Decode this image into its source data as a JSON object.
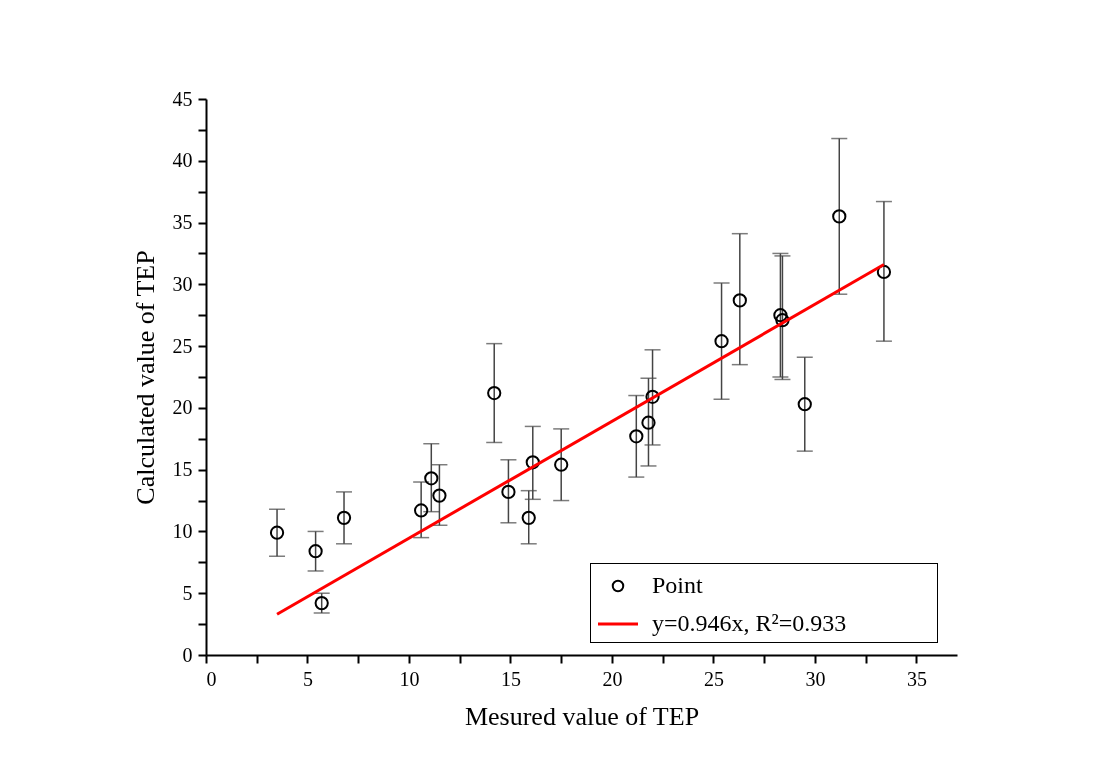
{
  "chart_data": {
    "type": "scatter",
    "xlabel": "Mesured value of TEP",
    "ylabel": "Calculated value of TEP",
    "xlim": [
      0,
      37
    ],
    "ylim": [
      0,
      45
    ],
    "xticks": [
      0,
      {
        "value": 2.5,
        "label": null
      },
      5,
      {
        "value": 7.5,
        "label": null
      },
      10,
      {
        "value": 12.5,
        "label": null
      },
      15,
      {
        "value": 17.5,
        "label": null
      },
      20,
      {
        "value": 22.5,
        "label": null
      },
      25,
      {
        "value": 27.5,
        "label": null
      },
      30,
      {
        "value": 32.5,
        "label": null
      },
      35
    ],
    "yticks": [
      0,
      {
        "value": 2.5,
        "label": null
      },
      5,
      {
        "value": 7.5,
        "label": null
      },
      10,
      {
        "value": 12.5,
        "label": null
      },
      15,
      {
        "value": 17.5,
        "label": null
      },
      20,
      {
        "value": 22.5,
        "label": null
      },
      25,
      {
        "value": 27.5,
        "label": null
      },
      30,
      {
        "value": 32.5,
        "label": null
      },
      35,
      {
        "value": 37.5,
        "label": null
      },
      40,
      {
        "value": 42.5,
        "label": null
      },
      45
    ],
    "grid": false,
    "legend": "bottom right",
    "marker": "circle",
    "series": [
      {
        "name": "Point",
        "type": "scatter",
        "color": "#000000",
        "x": [
          3.5,
          5.4,
          5.7,
          6.8,
          10.6,
          11.1,
          11.5,
          14.2,
          14.9,
          15.9,
          16.1,
          17.5,
          21.2,
          21.8,
          22.0,
          25.4,
          26.3,
          28.3,
          28.4,
          29.5,
          31.2,
          33.4
        ],
        "values": [
          9.9,
          8.4,
          4.2,
          11.1,
          11.7,
          14.3,
          12.9,
          21.2,
          13.2,
          11.1,
          15.6,
          15.4,
          17.7,
          18.8,
          20.9,
          25.4,
          28.7,
          27.5,
          27.1,
          20.3,
          35.5,
          31.0
        ],
        "errors": [
          [
            8.0,
            11.8
          ],
          [
            6.8,
            10.0
          ],
          [
            3.4,
            5.0
          ],
          [
            9.0,
            13.2
          ],
          [
            9.5,
            14.0
          ],
          [
            11.6,
            17.1
          ],
          [
            10.5,
            15.4
          ],
          [
            17.2,
            25.2
          ],
          [
            10.7,
            15.8
          ],
          [
            9.0,
            13.3
          ],
          [
            12.6,
            18.5
          ],
          [
            12.5,
            18.3
          ],
          [
            14.4,
            21.0
          ],
          [
            15.3,
            22.4
          ],
          [
            17.0,
            24.7
          ],
          [
            20.7,
            30.1
          ],
          [
            23.5,
            34.1
          ],
          [
            22.5,
            32.5
          ],
          [
            22.3,
            32.3
          ],
          [
            16.5,
            24.1
          ],
          [
            29.2,
            41.8
          ],
          [
            25.4,
            36.7
          ]
        ]
      },
      {
        "name": "y=0.946x, R²=0.933",
        "type": "line",
        "color": "#ff0000",
        "x": [
          3.5,
          33.4
        ],
        "values": [
          3.3,
          31.6
        ],
        "marker": "none"
      }
    ]
  }
}
